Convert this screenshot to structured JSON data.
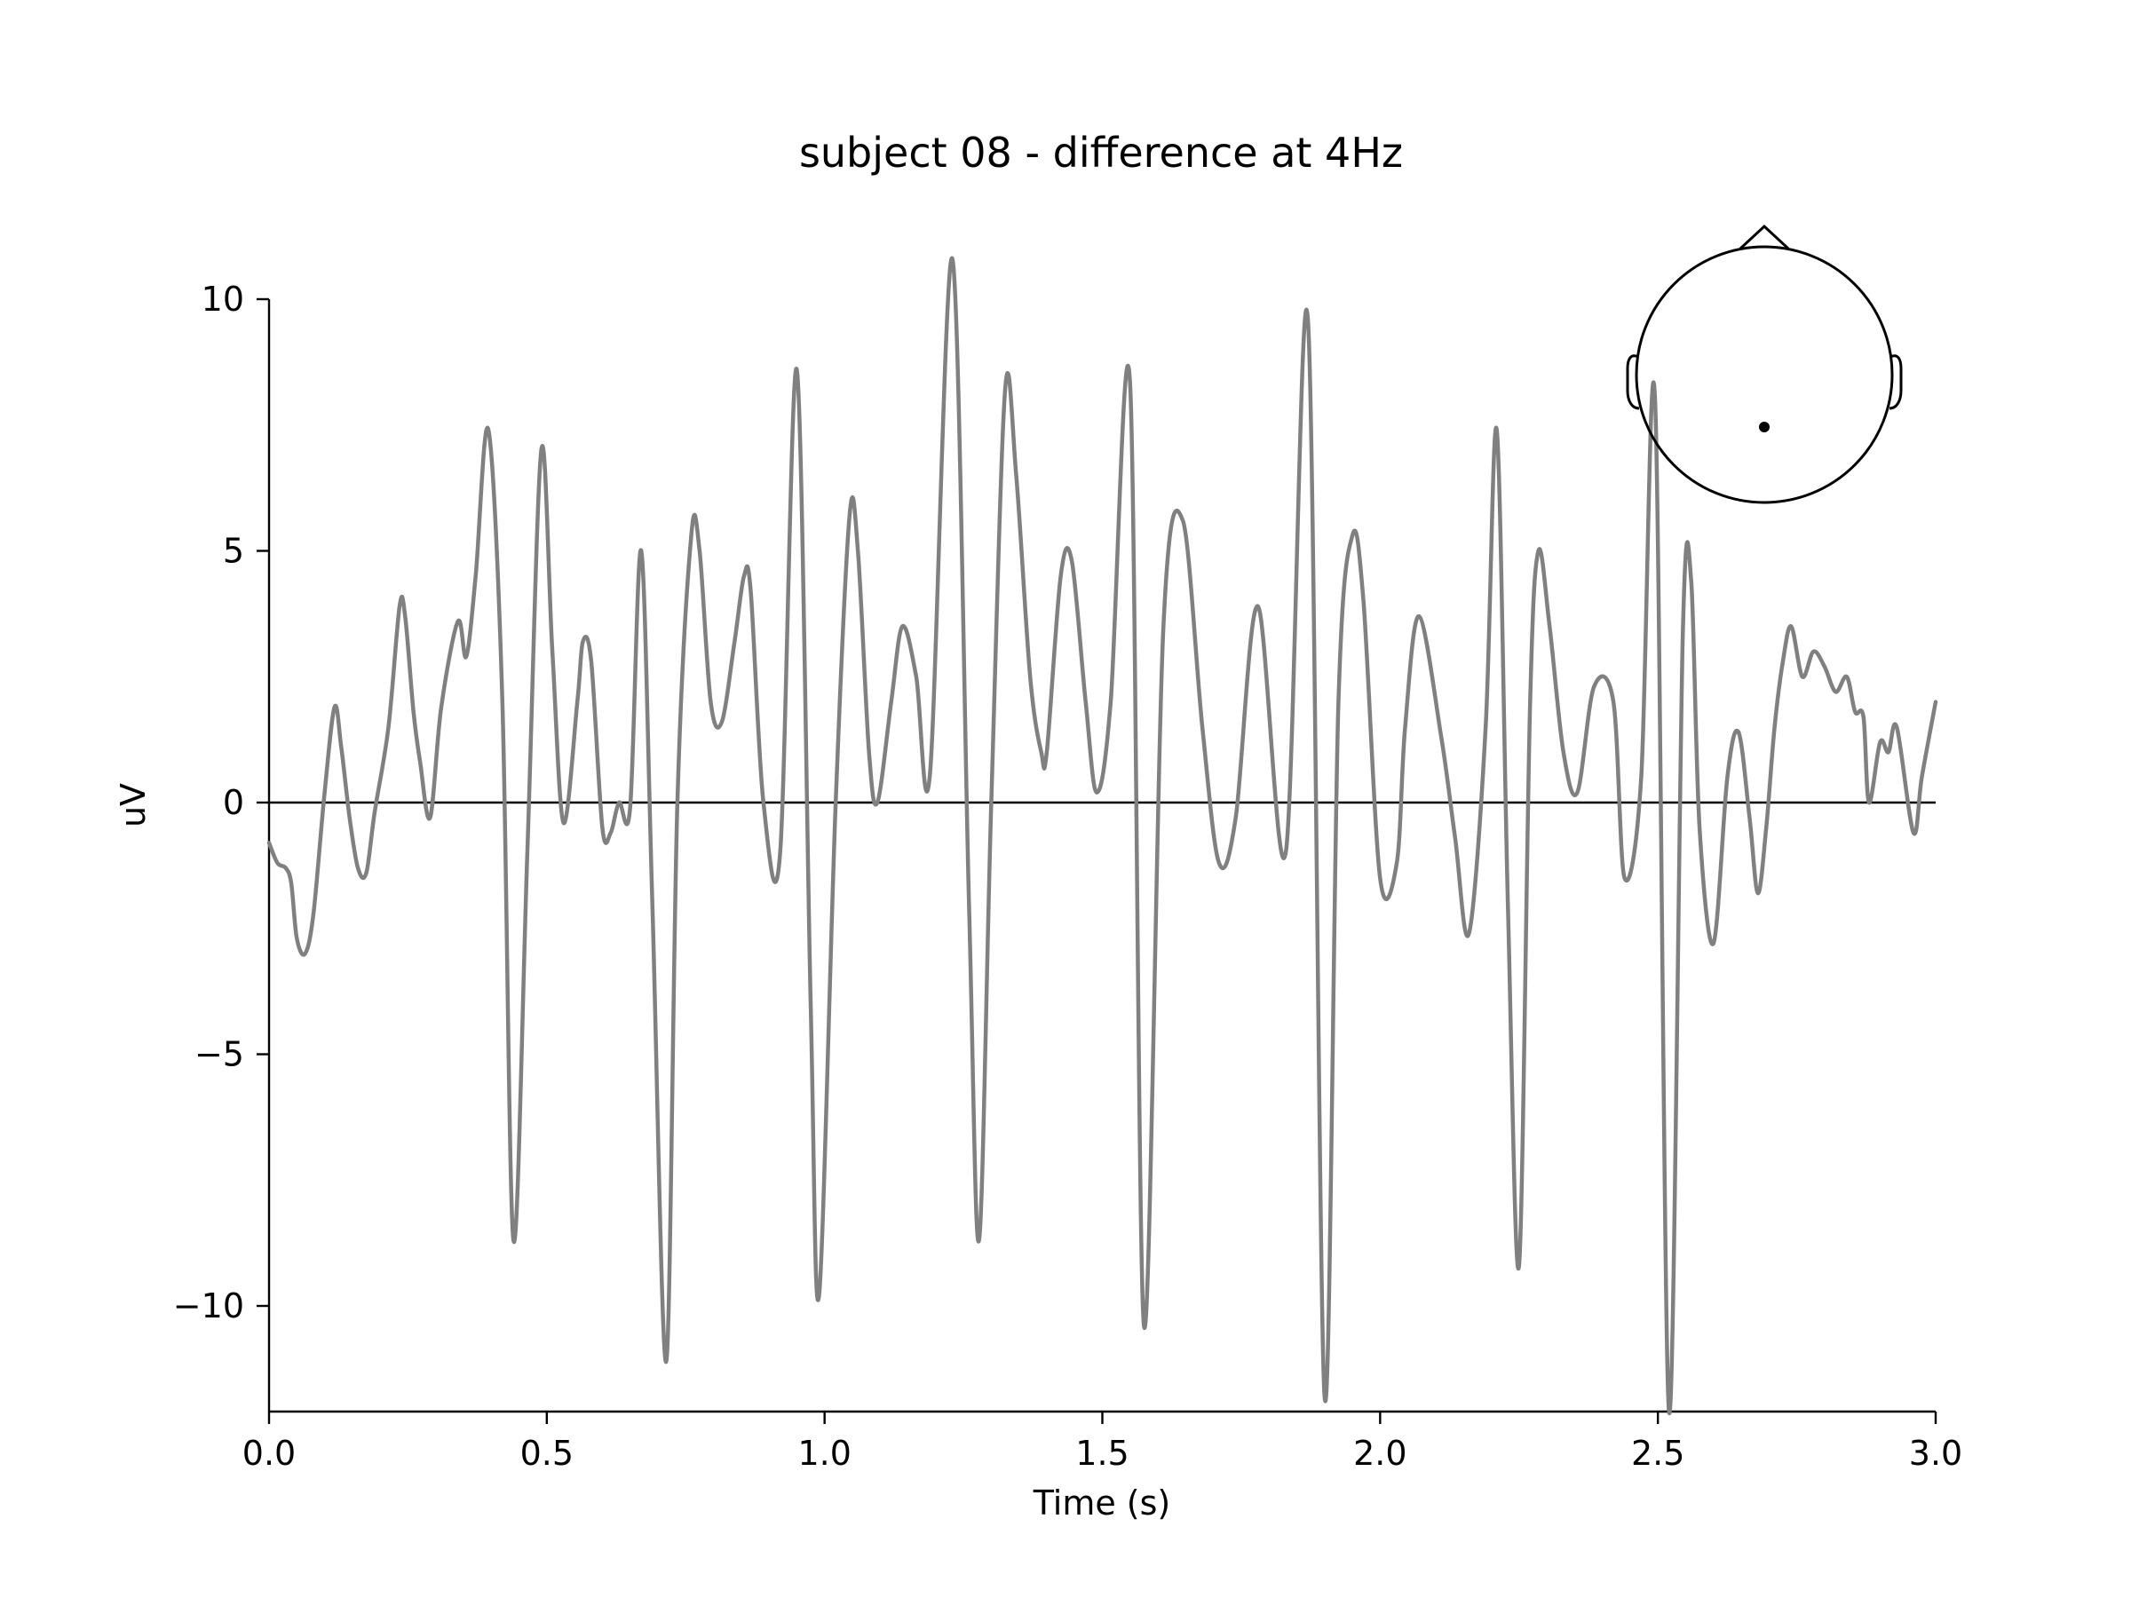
{
  "chart_data": {
    "type": "line",
    "title": "subject 08 - difference at 4Hz",
    "xlabel": "Time (s)",
    "ylabel": "uV",
    "xlim": [
      0.0,
      3.0
    ],
    "ylim": [
      -12.1,
      11.2
    ],
    "grid": false,
    "legend": "none",
    "x_ticks": [
      0.0,
      0.5,
      1.0,
      1.5,
      2.0,
      2.5,
      3.0
    ],
    "x_tick_labels": [
      "0.0",
      "0.5",
      "1.0",
      "1.5",
      "2.0",
      "2.5",
      "3.0"
    ],
    "y_ticks": [
      10,
      5,
      0,
      -5,
      -10
    ],
    "y_tick_labels": [
      "10",
      "5",
      "0",
      "−5",
      "−10"
    ],
    "zero_line": 0,
    "inset": {
      "type": "sensor-head-map",
      "sensor": "single channel (posterior midline)"
    },
    "series": [
      {
        "name": "difference",
        "color": "#808080",
        "x": [
          0.0,
          0.015,
          0.03,
          0.04,
          0.05,
          0.065,
          0.08,
          0.1,
          0.118,
          0.13,
          0.145,
          0.16,
          0.175,
          0.19,
          0.215,
          0.235,
          0.245,
          0.26,
          0.272,
          0.29,
          0.31,
          0.34,
          0.355,
          0.372,
          0.395,
          0.42,
          0.44,
          0.465,
          0.49,
          0.51,
          0.53,
          0.555,
          0.565,
          0.58,
          0.6,
          0.615,
          0.63,
          0.65,
          0.67,
          0.69,
          0.715,
          0.735,
          0.76,
          0.775,
          0.795,
          0.815,
          0.838,
          0.855,
          0.867,
          0.89,
          0.92,
          0.95,
          0.975,
          0.99,
          1.02,
          1.045,
          1.06,
          1.08,
          1.095,
          1.12,
          1.14,
          1.165,
          1.19,
          1.23,
          1.26,
          1.278,
          1.3,
          1.325,
          1.345,
          1.37,
          1.39,
          1.4,
          1.425,
          1.445,
          1.47,
          1.49,
          1.515,
          1.55,
          1.575,
          1.61,
          1.645,
          1.68,
          1.71,
          1.74,
          1.78,
          1.83,
          1.87,
          1.9,
          1.925,
          1.95,
          1.97,
          2.0,
          2.03,
          2.045,
          2.07,
          2.11,
          2.135,
          2.16,
          2.19,
          2.21,
          2.23,
          2.25,
          2.27,
          2.285,
          2.305,
          2.33,
          2.355,
          2.385,
          2.42,
          2.44,
          2.47,
          2.495,
          2.52,
          2.545,
          2.56,
          2.575,
          2.6,
          2.625,
          2.645,
          2.665,
          2.68,
          2.695,
          2.71,
          2.725,
          2.74,
          2.76,
          2.78,
          2.8,
          2.82,
          2.84,
          2.855,
          2.87,
          2.88,
          2.9,
          2.915,
          2.93,
          2.96,
          2.975,
          3.0
        ],
        "values": [
          -0.8,
          -1.2,
          -1.3,
          -1.6,
          -2.7,
          -3.0,
          -2.2,
          0.2,
          1.9,
          1.1,
          -0.3,
          -1.3,
          -1.4,
          -0.2,
          1.5,
          3.9,
          3.7,
          1.8,
          0.8,
          -0.3,
          1.9,
          3.6,
          2.9,
          4.5,
          7.4,
          2.0,
          -8.7,
          -1.0,
          7.0,
          3.0,
          -0.4,
          2.0,
          3.2,
          2.8,
          -0.5,
          -0.6,
          0.0,
          -0.1,
          5.0,
          -2.0,
          -11.1,
          0.0,
          5.3,
          5.0,
          2.0,
          1.6,
          3.2,
          4.5,
          4.2,
          0.0,
          -1.0,
          8.6,
          -4.0,
          -9.8,
          0.0,
          5.7,
          5.0,
          1.0,
          0.0,
          2.0,
          3.5,
          2.5,
          0.6,
          10.8,
          -2.0,
          -8.7,
          0.0,
          8.2,
          6.5,
          2.5,
          1.0,
          1.0,
          4.5,
          4.8,
          2.0,
          0.2,
          2.0,
          8.3,
          -10.4,
          3.5,
          5.6,
          1.5,
          -1.2,
          -0.3,
          3.9,
          -1.0,
          9.6,
          -11.8,
          2.0,
          5.3,
          4.0,
          -1.5,
          -1.2,
          1.5,
          3.7,
          1.3,
          -0.7,
          -2.6,
          1.5,
          7.4,
          -2.0,
          -9.2,
          2.0,
          5.0,
          3.5,
          1.0,
          0.2,
          2.3,
          2.0,
          -1.5,
          0.5,
          8.0,
          -12.1,
          3.4,
          4.4,
          -0.5,
          -2.8,
          0.5,
          1.4,
          -0.3,
          -1.8,
          -0.5,
          1.5,
          2.8,
          3.5,
          2.5,
          3.0,
          2.7,
          2.2,
          2.5,
          1.8,
          1.7,
          0.0,
          1.2,
          1.0,
          1.5,
          -0.6,
          0.5,
          2.0
        ]
      }
    ]
  }
}
